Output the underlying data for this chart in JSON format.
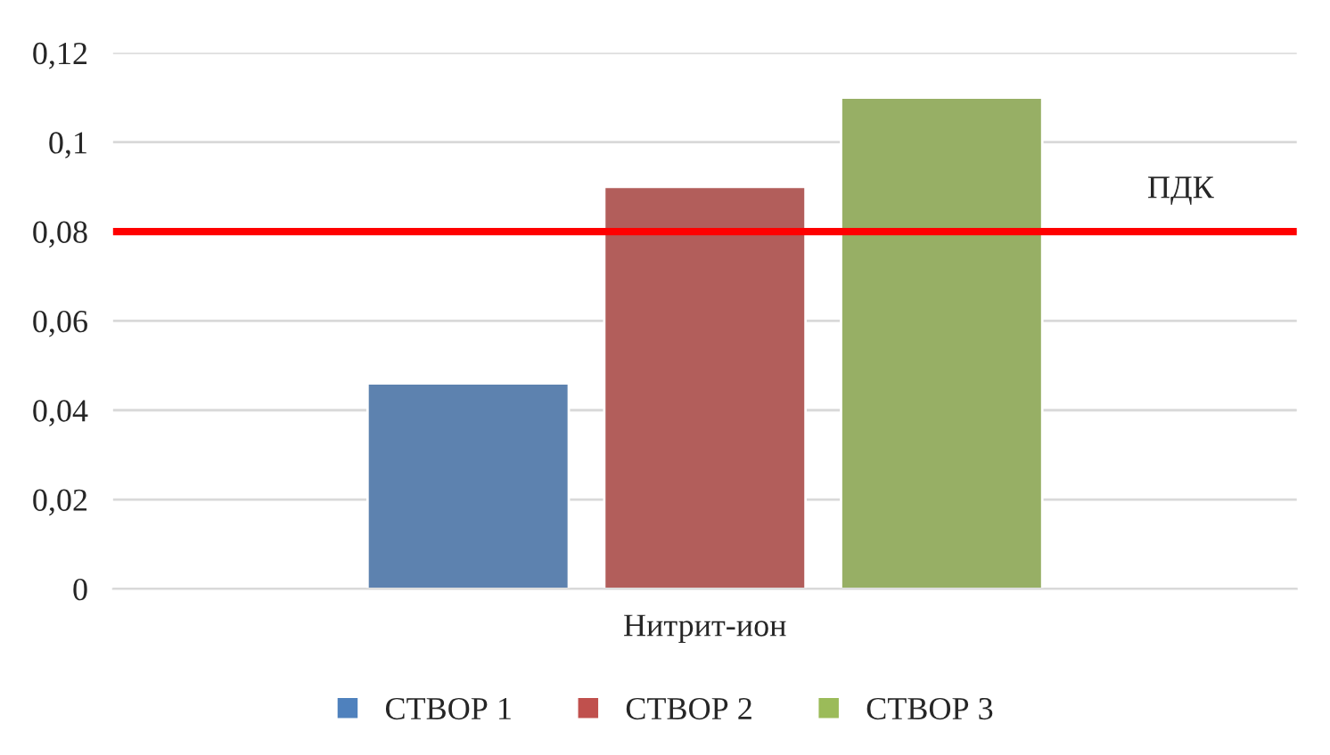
{
  "chart_data": {
    "type": "bar",
    "categories": [
      "Нитрит-ион"
    ],
    "series": [
      {
        "name": "СТВОР 1",
        "color": "#4f81bd",
        "values": [
          0.046
        ]
      },
      {
        "name": "СТВОР 2",
        "color": "#c0504d",
        "values": [
          0.09
        ]
      },
      {
        "name": "СТВОР 3",
        "color": "#9bbb59",
        "values": [
          0.11
        ]
      }
    ],
    "ylim": [
      0,
      0.12
    ],
    "yticks": [
      {
        "value": 0,
        "label": "0"
      },
      {
        "value": 0.02,
        "label": "0,02"
      },
      {
        "value": 0.04,
        "label": "0,04"
      },
      {
        "value": 0.06,
        "label": "0,06"
      },
      {
        "value": 0.08,
        "label": "0,08"
      },
      {
        "value": 0.1,
        "label": "0,1"
      },
      {
        "value": 0.12,
        "label": "0,12"
      }
    ],
    "ref_lines": [
      {
        "axis": "y",
        "value": 0.08,
        "label": "ПДК",
        "color": "#ff0000"
      }
    ],
    "grid": "y",
    "legend": "bottom"
  }
}
